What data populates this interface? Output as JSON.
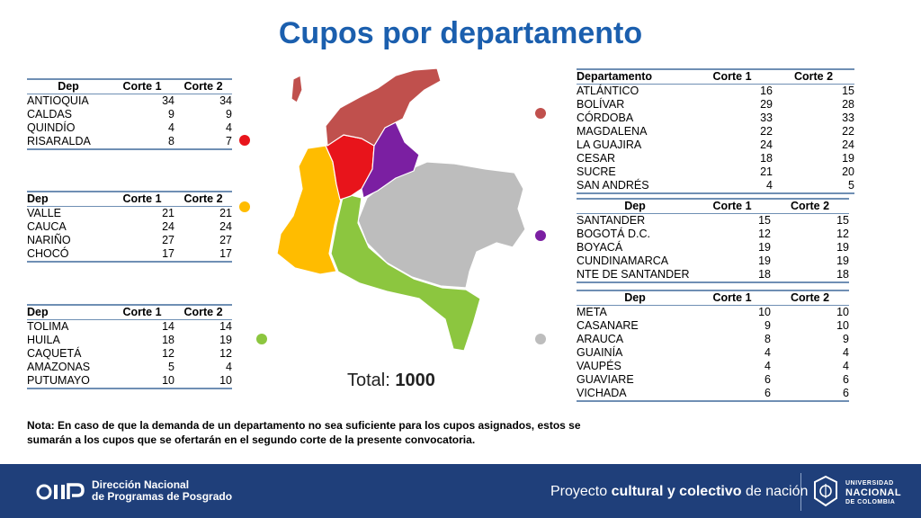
{
  "title": "Cupos por departamento",
  "headers": {
    "dep": "Dep",
    "departamento": "Departamento",
    "corte1": "Corte 1",
    "corte2": "Corte 2"
  },
  "groups": [
    {
      "color": "#e8141b",
      "header": "Dep",
      "rows": [
        {
          "dep": "ANTIOQUIA",
          "c1": "34",
          "c2": "34"
        },
        {
          "dep": "CALDAS",
          "c1": "9",
          "c2": "9"
        },
        {
          "dep": "QUINDÍO",
          "c1": "4",
          "c2": "4"
        },
        {
          "dep": "RISARALDA",
          "c1": "8",
          "c2": "7"
        }
      ]
    },
    {
      "color": "#ffbc00",
      "header": "Dep",
      "rows": [
        {
          "dep": "VALLE",
          "c1": "21",
          "c2": "21"
        },
        {
          "dep": "CAUCA",
          "c1": "24",
          "c2": "24"
        },
        {
          "dep": "NARIÑO",
          "c1": "27",
          "c2": "27"
        },
        {
          "dep": "CHOCÓ",
          "c1": "17",
          "c2": "17"
        }
      ]
    },
    {
      "color": "#8cc63f",
      "header": "Dep",
      "rows": [
        {
          "dep": "TOLIMA",
          "c1": "14",
          "c2": "14"
        },
        {
          "dep": "HUILA",
          "c1": "18",
          "c2": "19"
        },
        {
          "dep": "CAQUETÁ",
          "c1": "12",
          "c2": "12"
        },
        {
          "dep": "AMAZONAS",
          "c1": "5",
          "c2": "4"
        },
        {
          "dep": "PUTUMAYO",
          "c1": "10",
          "c2": "10"
        }
      ]
    },
    {
      "color": "#c0504d",
      "header": "Departamento",
      "rows": [
        {
          "dep": "ATLÁNTICO",
          "c1": "16",
          "c2": "15"
        },
        {
          "dep": "BOLÍVAR",
          "c1": "29",
          "c2": "28"
        },
        {
          "dep": "CÓRDOBA",
          "c1": "33",
          "c2": "33"
        },
        {
          "dep": "MAGDALENA",
          "c1": "22",
          "c2": "22"
        },
        {
          "dep": "LA GUAJIRA",
          "c1": "24",
          "c2": "24"
        },
        {
          "dep": "CESAR",
          "c1": "18",
          "c2": "19"
        },
        {
          "dep": "SUCRE",
          "c1": "21",
          "c2": "20"
        },
        {
          "dep": "SAN ANDRÉS",
          "c1": "4",
          "c2": "5"
        }
      ]
    },
    {
      "color": "#7b1fa2",
      "header": "Dep",
      "rows": [
        {
          "dep": "SANTANDER",
          "c1": "15",
          "c2": "15"
        },
        {
          "dep": "BOGOTÁ D.C.",
          "c1": "12",
          "c2": "12"
        },
        {
          "dep": "BOYACÁ",
          "c1": "19",
          "c2": "19"
        },
        {
          "dep": "CUNDINAMARCA",
          "c1": "19",
          "c2": "19"
        },
        {
          "dep": "NTE DE SANTANDER",
          "c1": "18",
          "c2": "18"
        }
      ]
    },
    {
      "color": "#bdbdbd",
      "header": "Dep",
      "rows": [
        {
          "dep": "META",
          "c1": "10",
          "c2": "10"
        },
        {
          "dep": "CASANARE",
          "c1": "9",
          "c2": "10"
        },
        {
          "dep": "ARAUCA",
          "c1": "8",
          "c2": "9"
        },
        {
          "dep": "GUAINÍA",
          "c1": "4",
          "c2": "4"
        },
        {
          "dep": "VAUPÉS",
          "c1": "4",
          "c2": "4"
        },
        {
          "dep": "GUAVIARE",
          "c1": "6",
          "c2": "6"
        },
        {
          "dep": "VICHADA",
          "c1": "6",
          "c2": "6"
        }
      ]
    }
  ],
  "total": {
    "label": "Total:",
    "value": "1000"
  },
  "note": "Nota: En caso de que la demanda de un departamento no sea suficiente para los cupos asignados, estos se sumarán a los cupos que se ofertarán en el segundo corte de la presente convocatoria.",
  "footer": {
    "brand_line1": "Dirección Nacional",
    "brand_line2": "de Programas de Posgrado",
    "slogan_pre": "Proyecto",
    "slogan_bold": "cultural y colectivo",
    "slogan_post": "de nación",
    "univ_line1": "UNIVERSIDAD",
    "univ_line2": "NACIONAL",
    "univ_line3": "DE COLOMBIA",
    "colors": {
      "background": "#1f3f7a"
    }
  }
}
